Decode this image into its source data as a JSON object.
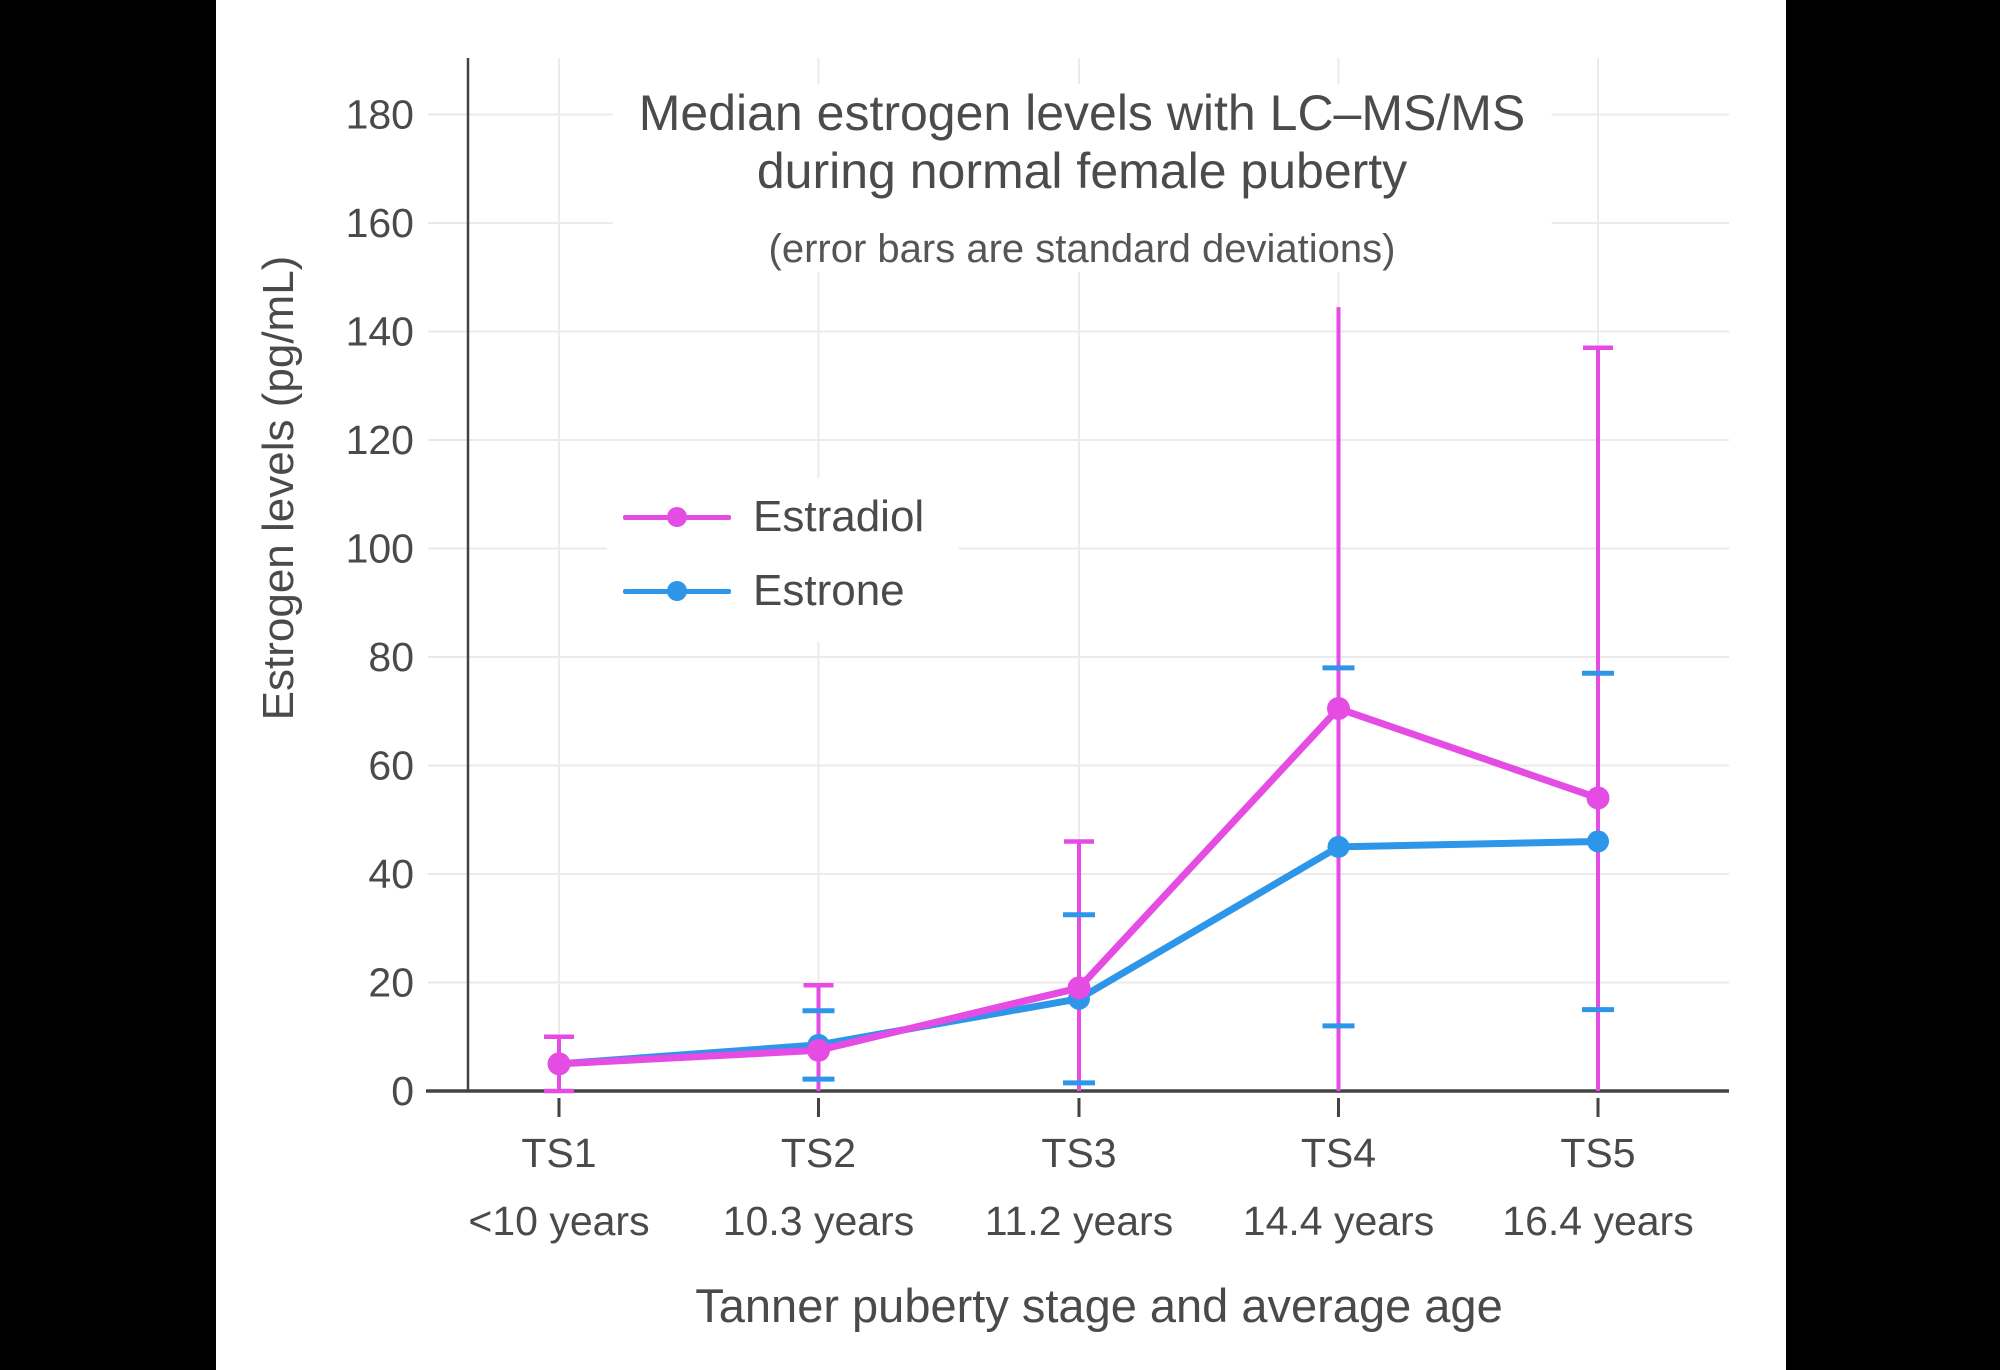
{
  "title": {
    "line1": "Median estrogen levels with LC–MS/MS",
    "line2": "during normal female puberty",
    "subtitle": "(error bars are standard deviations)"
  },
  "y_axis": {
    "title": "Estrogen levels (pg/mL)",
    "ticks": [
      0,
      20,
      40,
      60,
      80,
      100,
      120,
      140,
      160,
      180
    ],
    "range": [
      0,
      190
    ]
  },
  "x_axis": {
    "title": "Tanner puberty stage and average age"
  },
  "legend": [
    {
      "label": "Estradiol",
      "color": "#e44ce4"
    },
    {
      "label": "Estrone",
      "color": "#2e96e8"
    }
  ],
  "colors": {
    "estradiol": "#e44ce4",
    "estrone": "#2e96e8",
    "grid": "#ebebeb",
    "axis": "#434343",
    "text": "#4a4a4a"
  },
  "chart_data": {
    "type": "line",
    "title": "Median estrogen levels with LC–MS/MS during normal female puberty",
    "subtitle": "(error bars are standard deviations)",
    "xlabel": "Tanner puberty stage and average age",
    "ylabel": "Estrogen levels (pg/mL)",
    "ylim": [
      0,
      190
    ],
    "grid": true,
    "legend_position": "upper-left-inside",
    "error_bars": "standard deviations",
    "x_categories": [
      "TS1",
      "TS2",
      "TS3",
      "TS4",
      "TS5"
    ],
    "x_sub_labels": [
      "<10 years",
      "10.3 years",
      "11.2 years",
      "14.4 years",
      "16.4 years"
    ],
    "series": [
      {
        "name": "Estradiol",
        "color": "#e44ce4",
        "medians": [
          5,
          7.5,
          19,
          70.5,
          54
        ],
        "sd": [
          5,
          12,
          27,
          74,
          83
        ],
        "top_cap": [
          true,
          true,
          true,
          false,
          true
        ],
        "bottom_cap": [
          true,
          false,
          false,
          false,
          false
        ]
      },
      {
        "name": "Estrone",
        "color": "#2e96e8",
        "medians": [
          5,
          8.5,
          17,
          45,
          46
        ],
        "sd": [
          0,
          6.3,
          15.5,
          33,
          31
        ],
        "top_cap": [
          false,
          true,
          true,
          true,
          true
        ],
        "bottom_cap": [
          false,
          true,
          true,
          true,
          true
        ]
      }
    ]
  }
}
